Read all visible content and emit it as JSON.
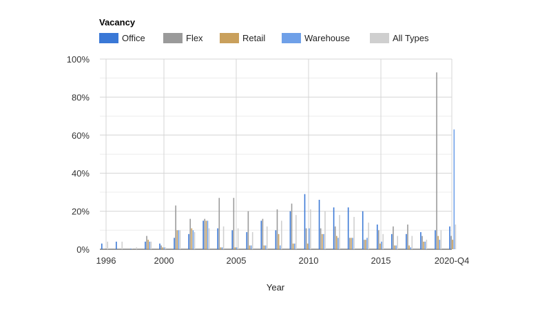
{
  "chart_data": {
    "type": "bar",
    "title": "Vacancy",
    "xlabel": "Year",
    "ylabel": "",
    "ylim": [
      0,
      100
    ],
    "y_ticks": [
      "0%",
      "20%",
      "40%",
      "60%",
      "80%",
      "100%"
    ],
    "x_tick_labels": [
      "1996",
      "2000",
      "2005",
      "2010",
      "2015",
      "2020-Q4"
    ],
    "legend_position": "top-left",
    "grid": true,
    "colors": {
      "Office": "#3a78d6",
      "Flex": "#9a9a9a",
      "Retail": "#c9a05c",
      "Warehouse": "#6fa0e8",
      "All Types": "#cfcfcf"
    },
    "categories": [
      "1996",
      "1997",
      "1998",
      "1999",
      "2000",
      "2001",
      "2002",
      "2003",
      "2004",
      "2005",
      "2006",
      "2007",
      "2008",
      "2009",
      "2010",
      "2011",
      "2012",
      "2013",
      "2014",
      "2015",
      "2016",
      "2017",
      "2018",
      "2019",
      "2020-Q4"
    ],
    "series": [
      {
        "name": "Office",
        "values": [
          3,
          4,
          0.3,
          4,
          3,
          6,
          8,
          15,
          11,
          10,
          9,
          15,
          10,
          20,
          29,
          26,
          22,
          22,
          20,
          13,
          8,
          8,
          9,
          10,
          12
        ]
      },
      {
        "name": "Flex",
        "values": [
          0,
          0,
          0.3,
          7,
          2,
          23,
          16,
          16,
          27,
          27,
          20,
          16,
          21,
          24,
          11,
          11,
          12,
          6,
          5,
          10,
          12,
          13,
          7,
          93,
          7
        ]
      },
      {
        "name": "Retail",
        "values": [
          0,
          0,
          0,
          5,
          1,
          10,
          11,
          15,
          1,
          1,
          2,
          2,
          8,
          3,
          3,
          8,
          7,
          6,
          5,
          3,
          2,
          2,
          4,
          7,
          5
        ]
      },
      {
        "name": "Warehouse",
        "values": [
          0,
          0,
          0,
          4,
          1,
          10,
          10,
          15,
          1,
          1,
          2,
          2,
          2,
          3,
          11,
          8,
          6,
          6,
          6,
          4,
          2,
          1,
          4,
          5,
          63
        ]
      },
      {
        "name": "All Types",
        "values": [
          4,
          4,
          1,
          4,
          1,
          10,
          9,
          11,
          12,
          11,
          9,
          12,
          15,
          18,
          21,
          20,
          18,
          17,
          14,
          8,
          7,
          7,
          5,
          10,
          13
        ]
      }
    ]
  }
}
